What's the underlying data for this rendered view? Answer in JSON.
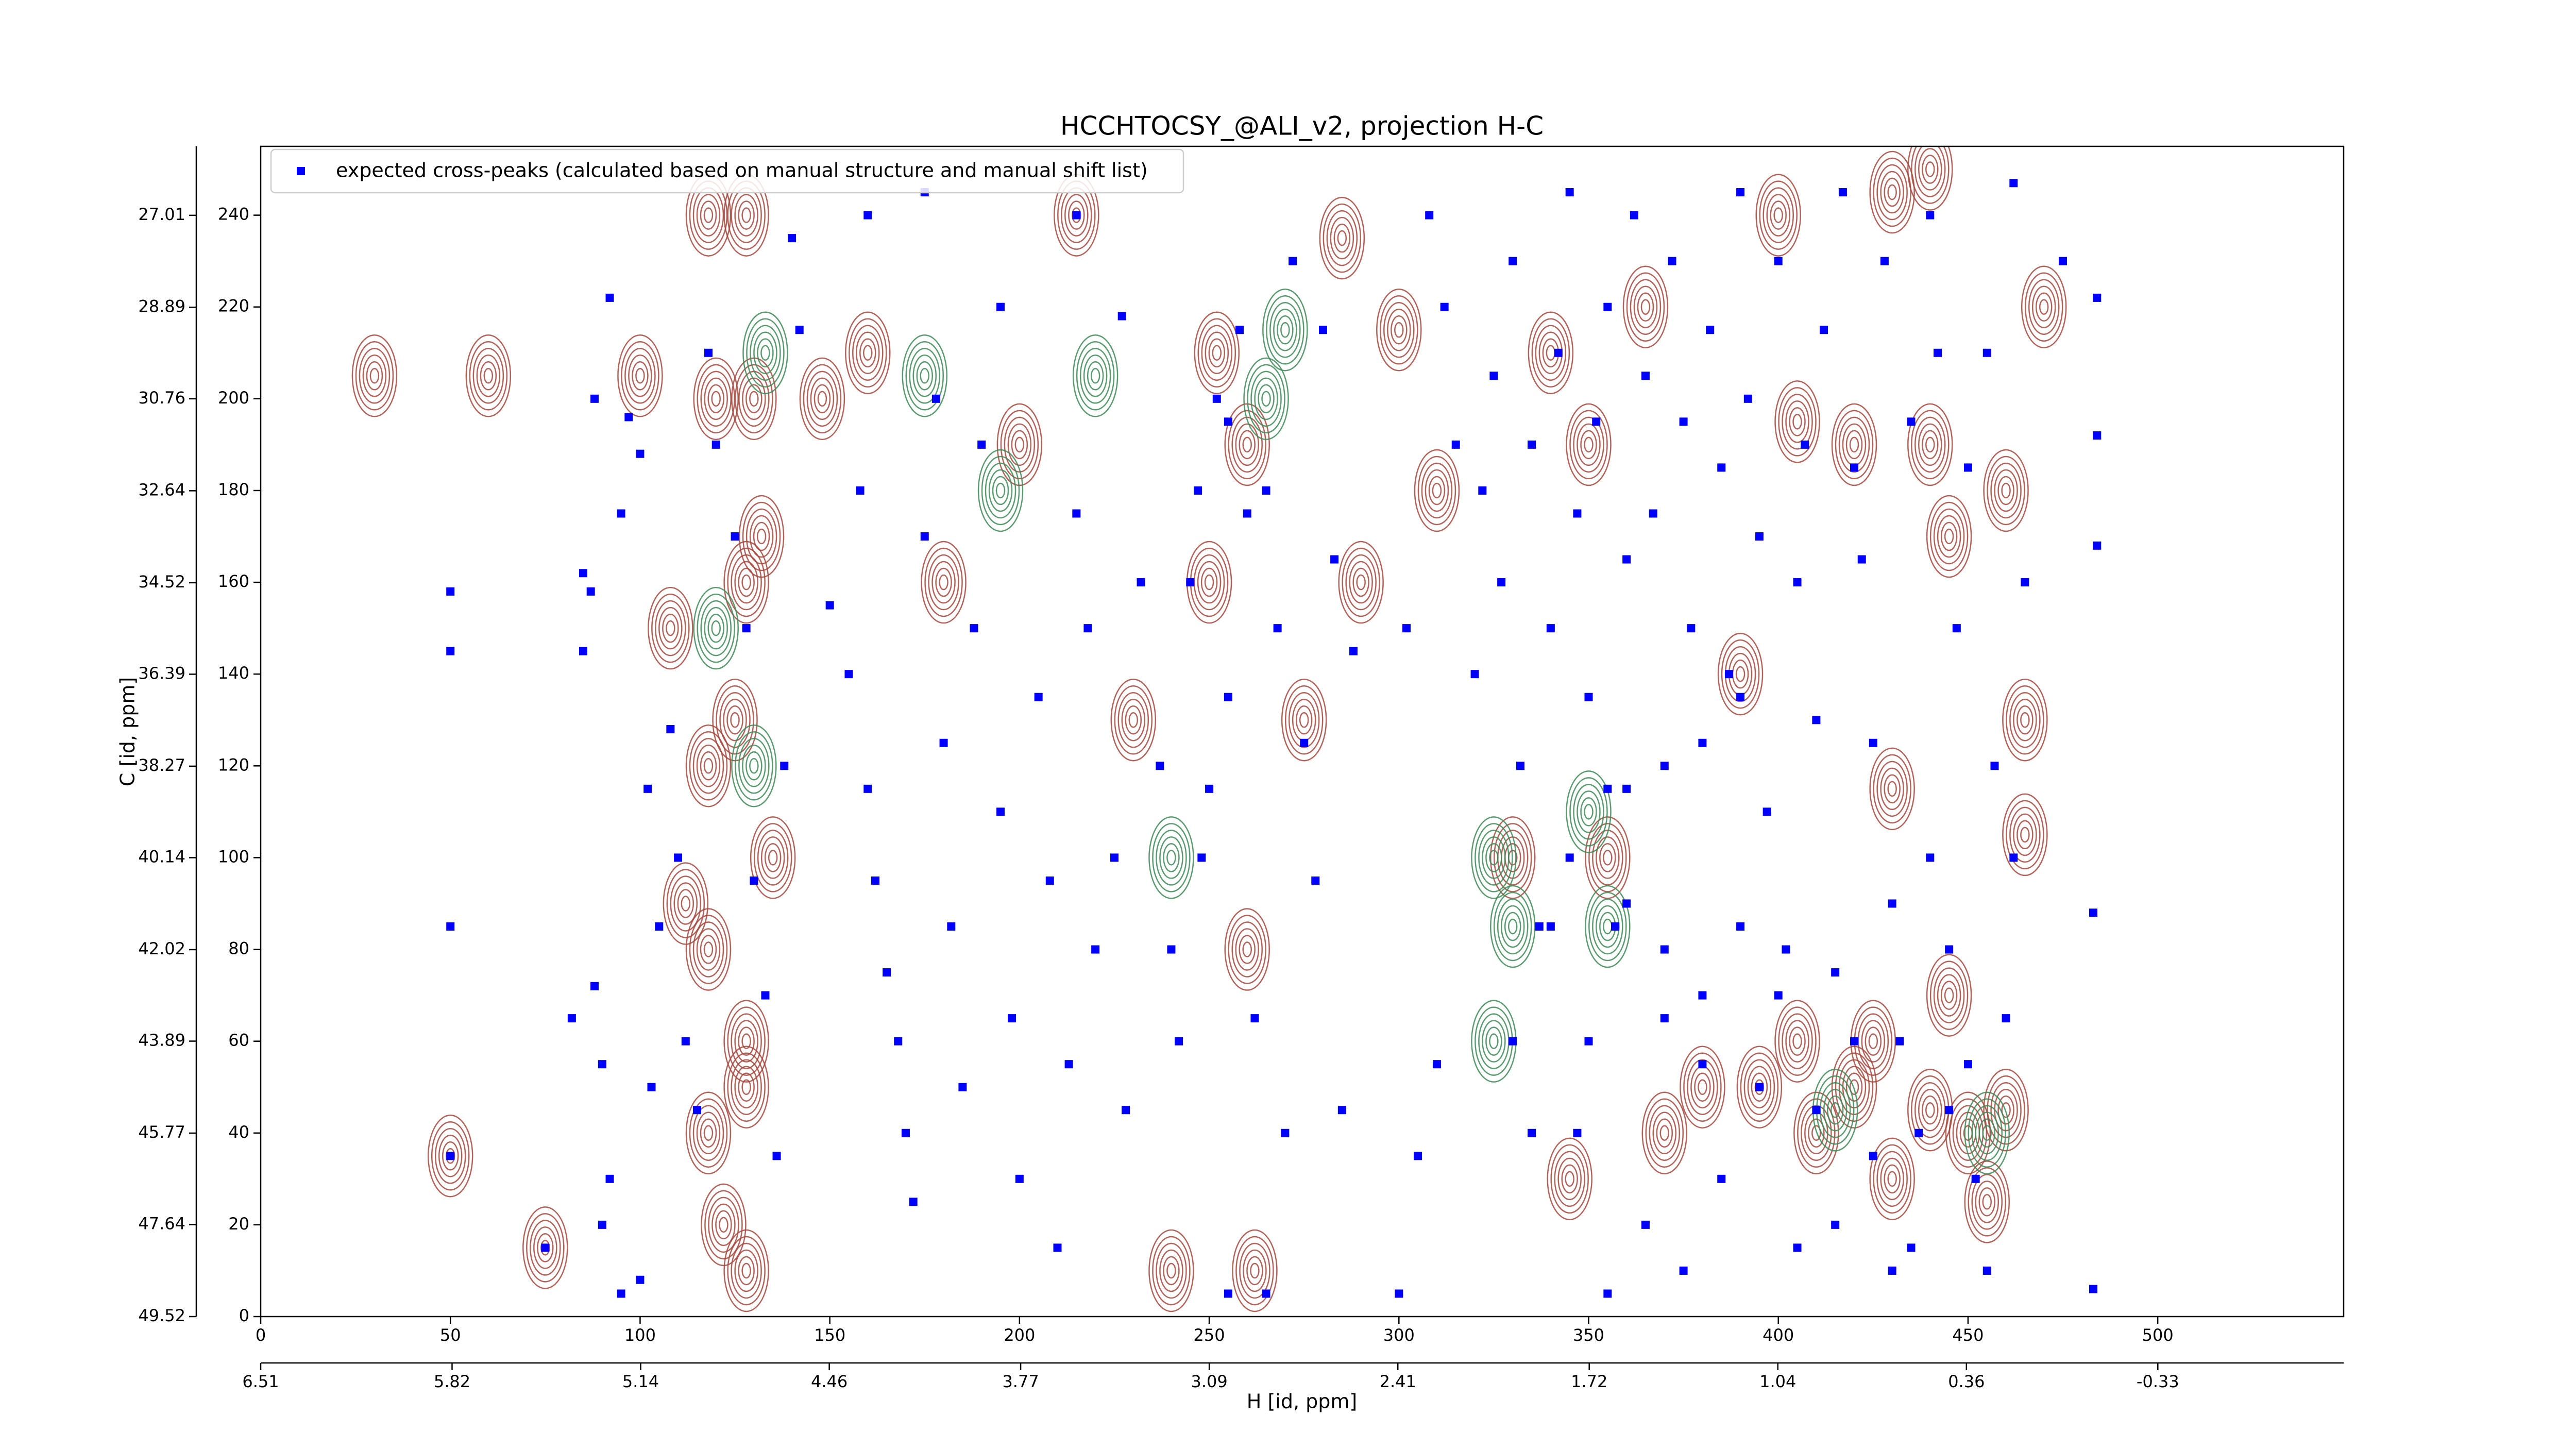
{
  "chart_data": {
    "type": "scatter",
    "title": "HCCHTOCSY_@ALI_v2, projection H-C",
    "xlabel": "H [id, ppm]",
    "ylabel": "C [id, ppm]",
    "xlim": [
      0,
      549
    ],
    "xticks": [
      0,
      50,
      100,
      150,
      200,
      250,
      300,
      350,
      400,
      450,
      500
    ],
    "x2lim": [
      6.51,
      -1.0
    ],
    "x2ticks": [
      6.51,
      5.82,
      5.14,
      4.46,
      3.77,
      3.09,
      2.41,
      1.72,
      1.04,
      0.36,
      -0.33
    ],
    "ylim": [
      0,
      255
    ],
    "yticks": [
      0,
      20,
      40,
      60,
      80,
      100,
      120,
      140,
      160,
      180,
      200,
      220,
      240
    ],
    "y2lim": [
      49.52,
      25.6
    ],
    "y2ticks": [
      49.52,
      47.64,
      45.77,
      43.89,
      42.02,
      40.14,
      38.27,
      36.39,
      34.52,
      32.64,
      30.76,
      28.89,
      27.01
    ],
    "legend": "upper left",
    "contours": [
      {
        "color": "#a5463c",
        "x": [
          120,
          130,
          60,
          30,
          100,
          75,
          50,
          148,
          215,
          240,
          260,
          262,
          290,
          275,
          330,
          355,
          345,
          370,
          380,
          395,
          405,
          410,
          420,
          425,
          430,
          440,
          450,
          460,
          455,
          445,
          420,
          405,
          440,
          460,
          445,
          465,
          465,
          430,
          400,
          430,
          440,
          470,
          390,
          340,
          350,
          365,
          310,
          300,
          285,
          200,
          180,
          160,
          125,
          128,
          122,
          108,
          112,
          132,
          135,
          252,
          260,
          230,
          250,
          118,
          118,
          118,
          128,
          128,
          128,
          118,
          128
        ],
        "y": [
          200,
          200,
          205,
          205,
          205,
          15,
          35,
          200,
          240,
          10,
          80,
          10,
          160,
          130,
          100,
          100,
          30,
          40,
          50,
          50,
          60,
          40,
          50,
          60,
          30,
          45,
          40,
          45,
          25,
          70,
          190,
          195,
          190,
          180,
          170,
          105,
          130,
          115,
          240,
          245,
          250,
          220,
          140,
          210,
          190,
          220,
          180,
          215,
          235,
          190,
          160,
          210,
          130,
          60,
          20,
          150,
          90,
          170,
          100,
          210,
          190,
          130,
          160,
          240,
          80,
          40,
          240,
          160,
          10,
          120,
          50
        ]
      },
      {
        "color": "#3c8a55",
        "x": [
          120,
          130,
          133,
          175,
          220,
          240,
          265,
          325,
          325,
          330,
          350,
          355,
          415,
          455,
          270,
          195
        ],
        "y": [
          150,
          120,
          210,
          205,
          205,
          100,
          200,
          60,
          100,
          85,
          110,
          85,
          45,
          40,
          215,
          180
        ]
      }
    ],
    "series": [
      {
        "name": "expected cross-peaks (calculated based on manual structure and manual shift list)",
        "color": "#0000ff",
        "x": [
          82,
          85,
          87,
          85,
          88,
          90,
          92,
          90,
          95,
          97,
          100,
          102,
          105,
          108,
          110,
          112,
          115,
          95,
          100,
          103,
          118,
          120,
          125,
          128,
          130,
          133,
          136,
          138,
          140,
          142,
          88,
          92,
          150,
          155,
          158,
          160,
          162,
          165,
          168,
          170,
          172,
          175,
          178,
          180,
          182,
          185,
          188,
          190,
          195,
          198,
          200,
          205,
          208,
          210,
          213,
          215,
          218,
          220,
          225,
          228,
          160,
          175,
          195,
          215,
          227,
          232,
          237,
          240,
          242,
          245,
          248,
          250,
          252,
          255,
          258,
          260,
          262,
          265,
          268,
          270,
          272,
          275,
          278,
          280,
          283,
          285,
          288,
          265,
          255,
          247,
          255,
          300,
          305,
          310,
          302,
          308,
          312,
          315,
          320,
          322,
          325,
          327,
          330,
          332,
          335,
          337,
          340,
          342,
          345,
          347,
          350,
          352,
          355,
          357,
          360,
          362,
          365,
          367,
          370,
          372,
          375,
          377,
          380,
          382,
          385,
          387,
          390,
          392,
          395,
          397,
          400,
          402,
          405,
          407,
          410,
          412,
          415,
          417,
          420,
          422,
          425,
          428,
          430,
          432,
          435,
          437,
          440,
          442,
          445,
          447,
          450,
          452,
          455,
          457,
          460,
          462,
          465,
          347,
          355,
          365,
          375,
          385,
          395,
          405,
          415,
          425,
          435,
          445,
          455,
          330,
          335,
          340,
          350,
          360,
          370,
          380,
          390,
          400,
          410,
          420,
          430,
          440,
          450,
          360,
          370,
          380,
          390,
          345,
          355,
          50,
          50,
          50,
          50,
          75,
          484,
          484,
          484,
          483,
          483,
          475,
          462
        ],
        "y": [
          65,
          145,
          158,
          162,
          72,
          55,
          30,
          20,
          175,
          196,
          188,
          115,
          85,
          128,
          100,
          60,
          45,
          5,
          8,
          50,
          210,
          190,
          170,
          150,
          95,
          70,
          35,
          120,
          235,
          215,
          200,
          222,
          155,
          140,
          180,
          115,
          95,
          75,
          60,
          40,
          25,
          170,
          200,
          125,
          85,
          50,
          150,
          190,
          110,
          65,
          30,
          135,
          95,
          15,
          55,
          175,
          150,
          80,
          100,
          45,
          240,
          245,
          220,
          240,
          218,
          160,
          120,
          80,
          60,
          160,
          100,
          115,
          200,
          135,
          215,
          175,
          65,
          180,
          150,
          40,
          230,
          125,
          95,
          215,
          165,
          45,
          145,
          5,
          5,
          180,
          195,
          5,
          35,
          55,
          150,
          240,
          220,
          190,
          140,
          180,
          205,
          160,
          230,
          120,
          190,
          85,
          150,
          210,
          245,
          175,
          135,
          195,
          220,
          85,
          165,
          240,
          205,
          175,
          80,
          230,
          195,
          150,
          70,
          215,
          185,
          140,
          245,
          200,
          170,
          110,
          230,
          80,
          160,
          190,
          130,
          215,
          75,
          245,
          185,
          165,
          125,
          230,
          90,
          60,
          195,
          40,
          240,
          210,
          80,
          150,
          185,
          30,
          210,
          120,
          65,
          100,
          160,
          40,
          5,
          20,
          10,
          30,
          50,
          15,
          20,
          35,
          15,
          45,
          10,
          60,
          40,
          85,
          60,
          90,
          65,
          55,
          85,
          70,
          45,
          60,
          10,
          100,
          55,
          115,
          120,
          125,
          135,
          100,
          115,
          158,
          145,
          85,
          35,
          15,
          222,
          192,
          168,
          88,
          6,
          230,
          247
        ]
      }
    ]
  }
}
